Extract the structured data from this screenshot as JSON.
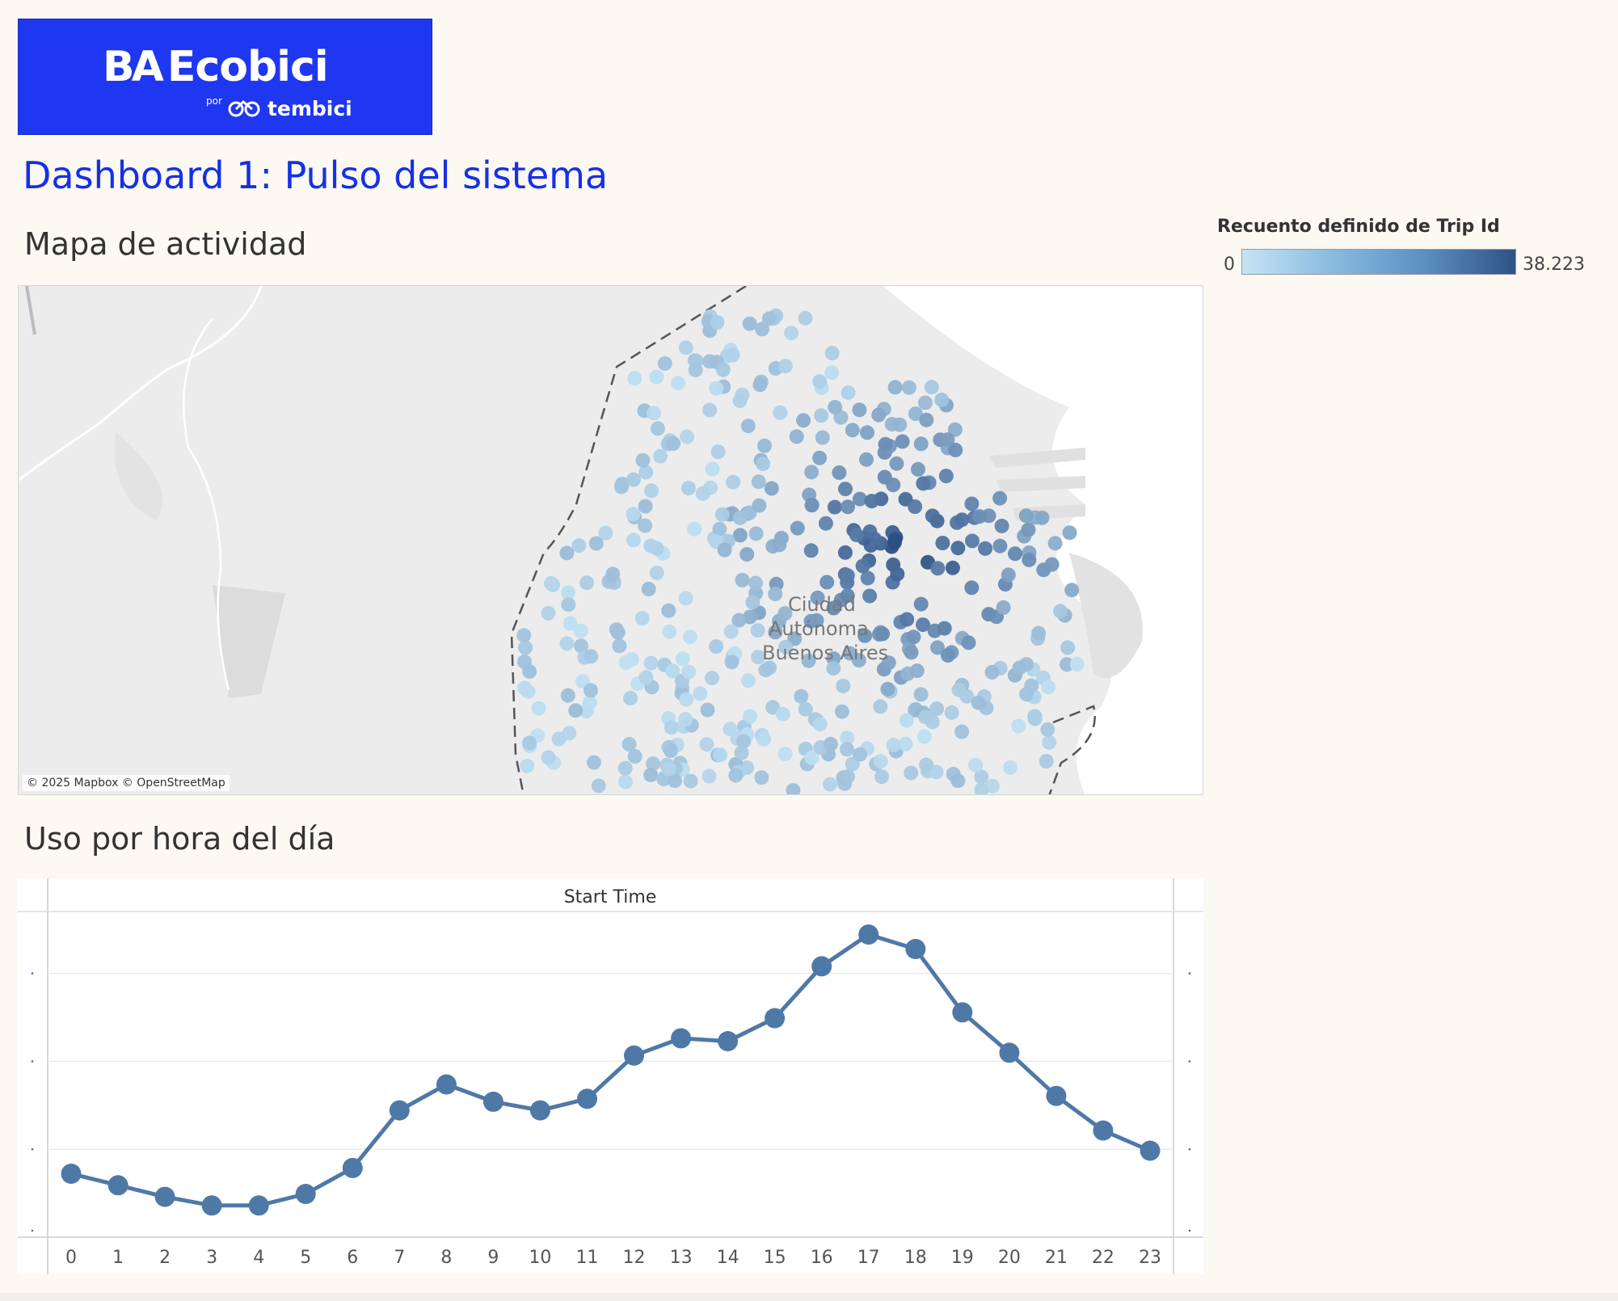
{
  "logo": {
    "brand": "Ecobici",
    "ba": "BA",
    "por": "por",
    "partner": "tembici"
  },
  "page_title": "Dashboard 1: Pulso del sistema",
  "sections": {
    "map_title": "Mapa de actividad",
    "chart_title": "Uso por hora del día"
  },
  "legend": {
    "title": "Recuento definido de Trip Id",
    "min": "0",
    "max": "38.223"
  },
  "map": {
    "attribution": "© 2025 Mapbox © OpenStreetMap",
    "city_label": [
      "Ciudad",
      "Autónoma",
      "Buenos Aires"
    ],
    "point_color_low": "#bfe0f3",
    "point_color_high": "#2b4f85"
  },
  "chart_data": {
    "type": "line",
    "title": "Start Time",
    "xlabel": "",
    "ylabel": "",
    "categories": [
      "0",
      "1",
      "2",
      "3",
      "4",
      "5",
      "6",
      "7",
      "8",
      "9",
      "10",
      "11",
      "12",
      "13",
      "14",
      "15",
      "16",
      "17",
      "18",
      "19",
      "20",
      "21",
      "22",
      "23"
    ],
    "values": [
      0.22,
      0.18,
      0.14,
      0.11,
      0.11,
      0.15,
      0.24,
      0.44,
      0.53,
      0.47,
      0.44,
      0.48,
      0.63,
      0.69,
      0.68,
      0.76,
      0.94,
      1.05,
      1.0,
      0.78,
      0.64,
      0.49,
      0.37,
      0.3
    ],
    "ylim": [
      0,
      1.13
    ],
    "grid": true,
    "line_color": "#4e79a7"
  }
}
